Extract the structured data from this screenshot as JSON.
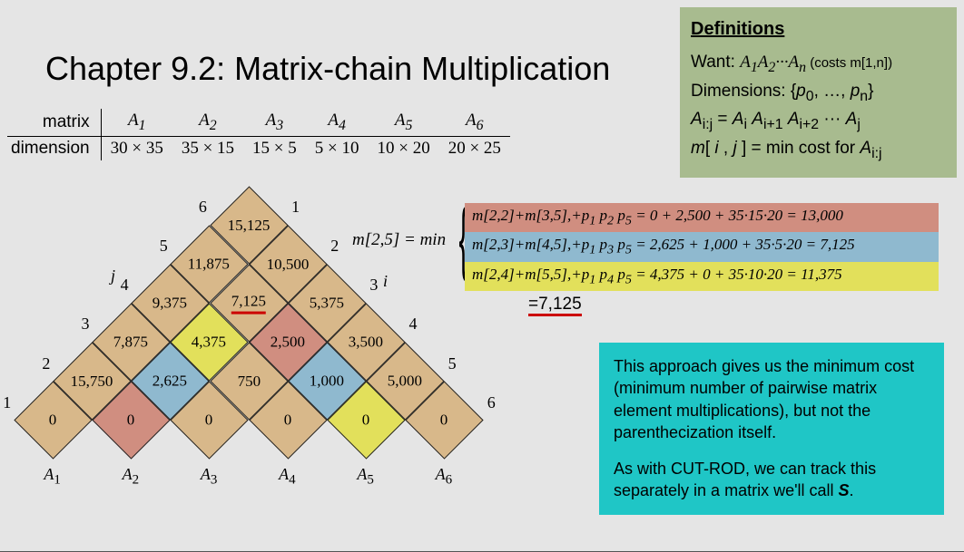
{
  "title": "Chapter 9.2: Matrix-chain Multiplication",
  "definitions": {
    "heading": "Definitions",
    "want_prefix": "Want: ",
    "want_expr_html": "A<sub>1</sub>A<sub>2</sub>···A<sub>n</sub>",
    "want_costs": " (costs m[1,n])",
    "dims_html": "Dimensions: {<i>p</i><sub>0</sub>, …, <i>p</i><sub>n</sub>}",
    "aij_html": "<i>A</i><sub>i:j</sub> = <i>A</i><sub>i</sub> <i>A</i><sub>i+1</sub> <i>A</i><sub>i+2</sub> ··· <i>A</i><sub>j</sub>",
    "mij_html": "<i>m</i>[ <i>i</i> , <i>j</i> ] = min cost for <i>A</i><sub>i:j</sub>"
  },
  "dim_table": {
    "row1_label": "matrix",
    "row2_label": "dimension",
    "cols": [
      "A₁",
      "A₂",
      "A₃",
      "A₄",
      "A₅",
      "A₆"
    ],
    "dims": [
      "30 × 35",
      "35  × 15",
      "15  × 5",
      "5 × 10",
      "10  × 20",
      "20  × 25"
    ]
  },
  "mineq": {
    "lhs": "m[2,5] = min",
    "rows": [
      {
        "html": "<i>m</i>[2,2]+<i>m</i>[3,5],+<i>p</i><sub>1</sub> <i>p</i><sub>2</sub> <i>p</i><sub>5</sub> = 0 + 2,500 + 35·15·20 = 13,000",
        "bg": "#d08e80"
      },
      {
        "html": "<i>m</i>[2,3]+<i>m</i>[4,5],+<i>p</i><sub>1</sub> <i>p</i><sub>3</sub> <i>p</i><sub>5</sub> = 2,625 + 1,000 + 35·5·20 = 7,125",
        "bg": "#8fb9cf"
      },
      {
        "html": "<i>m</i>[2,4]+<i>m</i>[5,5],+<i>p</i><sub>1</sub> <i>p</i><sub>4</sub> <i>p</i><sub>5</sub> = 4,375 + 0 + 35·10·20 = 11,375",
        "bg": "#e2e05b"
      }
    ],
    "result": "=7,125"
  },
  "note": {
    "p1": "This approach gives us the minimum cost (minimum number of pairwise matrix element multiplications), but not the parenthecization itself.",
    "p2_html": "As with CUT-ROD, we can track this separately in a matrix we'll call <b><i>S</i></b>."
  },
  "triangle": {
    "colors": {
      "tan": "#d8b88a",
      "olive": "#e2e05b",
      "rust": "#d08e80",
      "steel": "#8fb9cf"
    },
    "m_label": "m",
    "j_label": "j",
    "i_label": "i",
    "left_nums": [
      "1",
      "2",
      "3",
      "4",
      "5",
      "6"
    ],
    "right_nums": [
      "1",
      "2",
      "3",
      "4",
      "5",
      "6"
    ],
    "bottom_labels": [
      "A₁",
      "A₂",
      "A₃",
      "A₄",
      "A₅",
      "A₆"
    ],
    "cell_size": 61,
    "cells": [
      {
        "r": 0,
        "c": 0,
        "v": "15,125",
        "fill": "tan"
      },
      {
        "r": 1,
        "c": 0,
        "v": "11,875",
        "fill": "tan"
      },
      {
        "r": 1,
        "c": 1,
        "v": "10,500",
        "fill": "tan"
      },
      {
        "r": 2,
        "c": 0,
        "v": "9,375",
        "fill": "tan"
      },
      {
        "r": 2,
        "c": 1,
        "v": "7,125",
        "fill": "tan",
        "hl": true
      },
      {
        "r": 2,
        "c": 2,
        "v": "5,375",
        "fill": "tan"
      },
      {
        "r": 3,
        "c": 0,
        "v": "7,875",
        "fill": "tan"
      },
      {
        "r": 3,
        "c": 1,
        "v": "4,375",
        "fill": "olive"
      },
      {
        "r": 3,
        "c": 2,
        "v": "2,500",
        "fill": "rust"
      },
      {
        "r": 3,
        "c": 3,
        "v": "3,500",
        "fill": "tan"
      },
      {
        "r": 4,
        "c": 0,
        "v": "15,750",
        "fill": "tan"
      },
      {
        "r": 4,
        "c": 1,
        "v": "2,625",
        "fill": "steel"
      },
      {
        "r": 4,
        "c": 2,
        "v": "750",
        "fill": "tan"
      },
      {
        "r": 4,
        "c": 3,
        "v": "1,000",
        "fill": "steel"
      },
      {
        "r": 4,
        "c": 4,
        "v": "5,000",
        "fill": "tan"
      },
      {
        "r": 5,
        "c": 0,
        "v": "0",
        "fill": "tan"
      },
      {
        "r": 5,
        "c": 1,
        "v": "0",
        "fill": "rust"
      },
      {
        "r": 5,
        "c": 2,
        "v": "0",
        "fill": "tan"
      },
      {
        "r": 5,
        "c": 3,
        "v": "0",
        "fill": "tan"
      },
      {
        "r": 5,
        "c": 4,
        "v": "0",
        "fill": "olive"
      },
      {
        "r": 5,
        "c": 5,
        "v": "0",
        "fill": "tan"
      }
    ]
  }
}
